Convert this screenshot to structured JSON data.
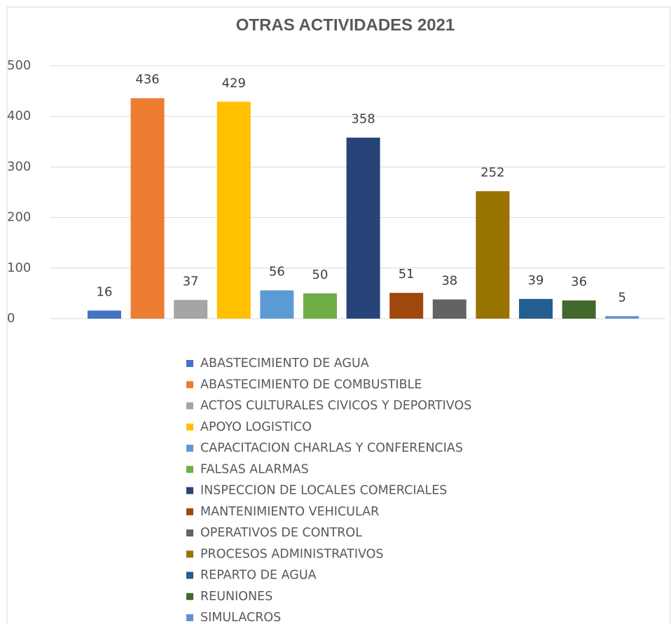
{
  "chart_data": {
    "type": "bar",
    "title": "OTRAS ACTIVIDADES 2021",
    "ylim": [
      0,
      500
    ],
    "yticks": [
      0,
      100,
      200,
      300,
      400,
      500
    ],
    "grid": true,
    "legend": "bottom",
    "series": [
      {
        "name": "ABASTECIMIENTO DE AGUA",
        "color": "#4472c4",
        "values": [
          16
        ]
      },
      {
        "name": "ABASTECIMIENTO DE COMBUSTIBLE",
        "color": "#ed7d31",
        "values": [
          436
        ]
      },
      {
        "name": "ACTOS CULTURALES CIVICOS Y DEPORTIVOS",
        "color": "#a5a5a5",
        "values": [
          37
        ]
      },
      {
        "name": "APOYO LOGISTICO",
        "color": "#ffc000",
        "values": [
          429
        ]
      },
      {
        "name": "CAPACITACION CHARLAS Y CONFERENCIAS",
        "color": "#5b9bd5",
        "values": [
          56
        ]
      },
      {
        "name": "FALSAS ALARMAS",
        "color": "#70ad47",
        "values": [
          50
        ]
      },
      {
        "name": "INSPECCION DE LOCALES COMERCIALES",
        "color": "#264478",
        "values": [
          358
        ]
      },
      {
        "name": "MANTENIMIENTO VEHICULAR",
        "color": "#9e480e",
        "values": [
          51
        ]
      },
      {
        "name": "OPERATIVOS DE CONTROL",
        "color": "#636363",
        "values": [
          38
        ]
      },
      {
        "name": "PROCESOS ADMINISTRATIVOS",
        "color": "#997300",
        "values": [
          252
        ]
      },
      {
        "name": "REPARTO DE AGUA",
        "color": "#255e91",
        "values": [
          39
        ]
      },
      {
        "name": "REUNIONES",
        "color": "#43682b",
        "values": [
          36
        ]
      },
      {
        "name": "SIMULACROS",
        "color": "#698ed0",
        "values": [
          5
        ]
      }
    ]
  }
}
